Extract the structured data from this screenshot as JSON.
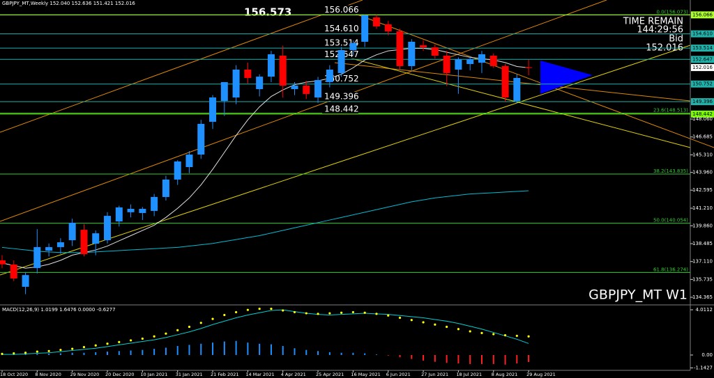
{
  "chart_data": [
    {
      "type": "candlestick",
      "title": "GBPJPY_MT,Weekly 152.040 152.636 151.421 152.016",
      "watermark": "GBPJPY_MT W1",
      "info": [
        "TIME REMAIN",
        "144:29:56",
        "Bid"
      ],
      "annotations": [
        "156.573"
      ],
      "categories": [
        "18 Oct 2020",
        null,
        null,
        "8 Nov 2020",
        null,
        null,
        "29 Nov 2020",
        null,
        null,
        "20 Dec 2020",
        null,
        null,
        "10 Jan 2021",
        null,
        null,
        "31 Jan 2021",
        null,
        null,
        "21 Feb 2021",
        null,
        null,
        "14 Mar 2021",
        null,
        null,
        "4 Apr 2021",
        null,
        null,
        "25 Apr 2021",
        null,
        null,
        "16 May 2021",
        null,
        null,
        "6 Jun 2021",
        null,
        null,
        "27 Jun 2021",
        null,
        null,
        "18 Jul 2021",
        null,
        null,
        "8 Aug 2021",
        null,
        null,
        "29 Aug 2021"
      ],
      "open": [
        137.2,
        136.88,
        135.17,
        136.61,
        137.95,
        138.22,
        138.75,
        139.55,
        138.48,
        138.75,
        140.19,
        140.9,
        140.84,
        141.0,
        142.07,
        143.41,
        144.37,
        145.33,
        147.85,
        149.45,
        149.72,
        151.86,
        150.36,
        151.32,
        152.93,
        150.36,
        150.63,
        149.72,
        150.9,
        151.59,
        153.36,
        154.0,
        155.87,
        155.34,
        154.8,
        152.13,
        153.73,
        153.57,
        152.93,
        151.86,
        152.29,
        152.39,
        152.93,
        152.13,
        149.45,
        152.04
      ],
      "high": [
        137.6,
        137.2,
        136.3,
        139.6,
        138.5,
        138.9,
        140.4,
        140.0,
        139.5,
        140.9,
        141.4,
        141.5,
        141.3,
        142.3,
        143.7,
        144.9,
        145.6,
        148.0,
        149.9,
        150.9,
        152.2,
        152.4,
        151.5,
        153.3,
        153.7,
        150.9,
        151.0,
        151.3,
        152.2,
        153.6,
        154.1,
        156.07,
        156.07,
        155.6,
        155.0,
        154.2,
        154.1,
        153.8,
        153.3,
        152.8,
        152.9,
        153.3,
        153.1,
        152.3,
        151.5,
        152.636
      ],
      "low": [
        136.6,
        135.6,
        134.6,
        136.2,
        137.5,
        137.7,
        138.3,
        137.5,
        137.6,
        138.5,
        139.8,
        140.5,
        140.3,
        140.6,
        141.8,
        143.0,
        143.9,
        145.0,
        147.3,
        148.3,
        149.2,
        150.8,
        149.8,
        150.9,
        149.7,
        149.9,
        149.6,
        149.3,
        150.5,
        151.3,
        153.0,
        153.6,
        155.0,
        154.5,
        151.9,
        151.8,
        153.3,
        152.7,
        150.6,
        150.0,
        151.8,
        151.6,
        152.0,
        149.4,
        149.3,
        151.421
      ],
      "close": [
        136.9,
        135.81,
        136.07,
        138.22,
        138.22,
        138.59,
        140.09,
        137.68,
        139.28,
        140.62,
        141.27,
        141.16,
        141.16,
        142.07,
        143.41,
        144.8,
        145.33,
        147.69,
        149.72,
        150.9,
        151.86,
        151.22,
        151.32,
        153.04,
        150.63,
        150.63,
        149.99,
        151.06,
        151.86,
        153.36,
        153.9,
        156.03,
        155.18,
        154.8,
        152.13,
        154.0,
        153.57,
        152.93,
        151.59,
        152.66,
        152.66,
        153.04,
        152.13,
        149.72,
        151.22,
        152.016
      ],
      "up_color": "#1e90ff",
      "down_color": "#ff0000",
      "series": [
        {
          "name": "MA slow",
          "color": "#00bcd4",
          "values": [
            138.2,
            138.1,
            138.0,
            137.9,
            137.85,
            137.8,
            137.8,
            137.8,
            137.85,
            137.9,
            137.95,
            138.0,
            138.05,
            138.1,
            138.15,
            138.2,
            138.3,
            138.4,
            138.5,
            138.65,
            138.8,
            138.95,
            139.1,
            139.3,
            139.5,
            139.7,
            139.9,
            140.1,
            140.3,
            140.5,
            140.7,
            140.9,
            141.1,
            141.3,
            141.5,
            141.7,
            141.85,
            142.0,
            142.1,
            142.2,
            142.3,
            142.35,
            142.4,
            142.45,
            142.5,
            142.55
          ]
        },
        {
          "name": "MA fast",
          "color": "#e0e0e0",
          "values": [
            137.0,
            136.8,
            136.6,
            136.7,
            136.9,
            137.2,
            137.6,
            137.8,
            138.0,
            138.3,
            138.7,
            139.1,
            139.5,
            139.9,
            140.5,
            141.2,
            142.0,
            143.0,
            144.2,
            145.5,
            146.8,
            148.0,
            149.0,
            149.8,
            150.3,
            150.7,
            150.9,
            151.0,
            151.2,
            151.5,
            152.0,
            152.6,
            153.0,
            153.3,
            153.4,
            153.5,
            153.5,
            153.4,
            153.2,
            153.0,
            152.8,
            152.7,
            152.6,
            152.4,
            152.1,
            152.0
          ]
        }
      ],
      "ylim": [
        133.83,
        157.21
      ],
      "yticks": [
        {
          "value": 148.06,
          "label": "148.060"
        },
        146.685,
        {
          "value": 145.31,
          "label": "145.310"
        },
        {
          "value": 143.96,
          "label": "143.960"
        },
        142.595,
        {
          "value": 141.21,
          "label": "141.210"
        },
        {
          "value": 139.86,
          "label": "139.860"
        },
        138.485,
        {
          "value": 137.11,
          "label": "137.110"
        },
        135.735,
        134.365
      ],
      "levels": [
        {
          "value": 156.066,
          "label": "156.066",
          "color": "#adff2f"
        },
        {
          "value": 154.61,
          "label": "154.610",
          "color": "#20b2aa"
        },
        {
          "value": 153.514,
          "label": "153.514",
          "color": "#20b2aa"
        },
        {
          "value": 152.647,
          "label": "152.647",
          "color": "#20b2aa"
        },
        {
          "value": 150.752,
          "label": "150.752",
          "color": "#20b2aa"
        },
        {
          "value": 149.396,
          "label": "149.396",
          "color": "#20b2aa"
        },
        {
          "value": 148.442,
          "label": "148.442",
          "color": "#7cfc00"
        }
      ],
      "bid": {
        "value": 152.016,
        "label": "152.016"
      },
      "fib_levels": [
        {
          "level": 156.073,
          "label": "0.0(156.073)"
        },
        {
          "level": 148.513,
          "label": "23.6(148.513)"
        },
        {
          "level": 143.835,
          "label": "38.2(143.835)"
        },
        {
          "level": 140.054,
          "label": "50.0(140.054)"
        },
        {
          "level": 136.274,
          "label": "61.8(136.274)"
        }
      ],
      "fib_color": "#32cd32"
    },
    {
      "type": "macd",
      "title": "MACD(12,26,9) 1.0199 1.6476 0.0000 -0.6277",
      "series": [
        {
          "name": "histogram",
          "type": "bar",
          "color": "#1e90ff",
          "negative_color": "#ff2020",
          "values": [
            0.05,
            0.05,
            0.08,
            0.1,
            0.12,
            0.15,
            0.2,
            0.2,
            0.25,
            0.3,
            0.35,
            0.4,
            0.45,
            0.55,
            0.65,
            0.8,
            0.9,
            1.0,
            1.1,
            1.2,
            1.25,
            1.1,
            1.0,
            0.95,
            0.8,
            0.6,
            0.45,
            0.35,
            0.25,
            0.2,
            0.2,
            0.15,
            0.05,
            -0.05,
            -0.2,
            -0.35,
            -0.5,
            -0.6,
            -0.7,
            -0.75,
            -0.8,
            -0.8,
            -0.8,
            -0.85,
            -0.75,
            -0.6277
          ]
        },
        {
          "name": "signal",
          "type": "line",
          "color": "#00ced1",
          "values": [
            0.05,
            0.05,
            0.1,
            0.15,
            0.2,
            0.3,
            0.4,
            0.5,
            0.6,
            0.75,
            0.9,
            1.05,
            1.2,
            1.35,
            1.55,
            1.8,
            2.05,
            2.35,
            2.7,
            3.0,
            3.3,
            3.55,
            3.75,
            3.95,
            4.0,
            3.85,
            3.7,
            3.6,
            3.55,
            3.6,
            3.65,
            3.7,
            3.65,
            3.6,
            3.5,
            3.4,
            3.3,
            3.15,
            3.0,
            2.8,
            2.55,
            2.3,
            2.0,
            1.7,
            1.4,
            1.0199
          ]
        },
        {
          "name": "main",
          "type": "scatter",
          "color": "#ffff00",
          "values": [
            0.1,
            0.15,
            0.2,
            0.3,
            0.35,
            0.45,
            0.55,
            0.7,
            0.85,
            1.0,
            1.15,
            1.3,
            1.45,
            1.65,
            1.9,
            2.2,
            2.5,
            2.85,
            3.2,
            3.55,
            3.8,
            4.0,
            4.1,
            4.1,
            3.95,
            3.8,
            3.7,
            3.65,
            3.7,
            3.75,
            3.8,
            3.75,
            3.65,
            3.5,
            3.3,
            3.1,
            2.9,
            2.7,
            2.5,
            2.3,
            2.1,
            1.95,
            1.85,
            1.75,
            1.7,
            1.6476
          ]
        }
      ],
      "ylim": [
        -1.36,
        4.32
      ],
      "yticks": [
        4.0112,
        {
          "value": 0,
          "label": "0.00"
        },
        -1.1427
      ]
    }
  ]
}
